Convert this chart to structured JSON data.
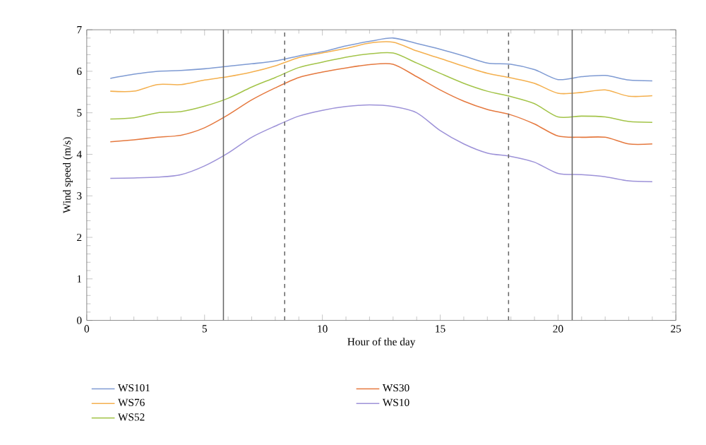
{
  "chart_data": {
    "type": "line",
    "xlabel": "Hour of the day",
    "ylabel": "Wind speed (m/s)",
    "x": [
      1,
      2,
      3,
      4,
      5,
      6,
      7,
      8,
      9,
      10,
      11,
      12,
      13,
      14,
      15,
      16,
      17,
      18,
      19,
      20,
      21,
      22,
      23,
      24
    ],
    "series": [
      {
        "name": "WS101",
        "color": "#7f9bd3",
        "values": [
          5.83,
          5.93,
          6.0,
          6.02,
          6.06,
          6.12,
          6.18,
          6.25,
          6.37,
          6.47,
          6.61,
          6.72,
          6.8,
          6.67,
          6.53,
          6.37,
          6.2,
          6.17,
          6.04,
          5.8,
          5.87,
          5.9,
          5.79,
          5.77
        ]
      },
      {
        "name": "WS76",
        "color": "#f4b04f",
        "values": [
          5.52,
          5.52,
          5.68,
          5.68,
          5.79,
          5.87,
          5.98,
          6.13,
          6.33,
          6.44,
          6.55,
          6.68,
          6.7,
          6.49,
          6.31,
          6.12,
          5.95,
          5.84,
          5.71,
          5.47,
          5.49,
          5.55,
          5.4,
          5.41
        ]
      },
      {
        "name": "WS52",
        "color": "#a3c449",
        "values": [
          4.85,
          4.88,
          5.0,
          5.03,
          5.16,
          5.35,
          5.62,
          5.85,
          6.09,
          6.22,
          6.34,
          6.42,
          6.44,
          6.2,
          5.95,
          5.71,
          5.52,
          5.39,
          5.22,
          4.9,
          4.92,
          4.9,
          4.79,
          4.77
        ]
      },
      {
        "name": "WS30",
        "color": "#e5793f",
        "values": [
          4.3,
          4.35,
          4.41,
          4.46,
          4.64,
          4.95,
          5.31,
          5.6,
          5.85,
          5.98,
          6.08,
          6.16,
          6.17,
          5.87,
          5.55,
          5.28,
          5.08,
          4.95,
          4.73,
          4.44,
          4.41,
          4.41,
          4.25,
          4.25
        ]
      },
      {
        "name": "WS10",
        "color": "#9d92d8",
        "values": [
          3.42,
          3.43,
          3.45,
          3.51,
          3.72,
          4.03,
          4.41,
          4.68,
          4.92,
          5.06,
          5.15,
          5.19,
          5.15,
          5.0,
          4.57,
          4.25,
          4.03,
          3.95,
          3.81,
          3.54,
          3.51,
          3.46,
          3.36,
          3.34
        ]
      }
    ],
    "xlim": [
      0,
      25
    ],
    "xticks": [
      0,
      5,
      10,
      15,
      20,
      25
    ],
    "ylim": [
      0,
      7
    ],
    "yticks": [
      0,
      1,
      2,
      3,
      4,
      5,
      6,
      7
    ],
    "ref_lines": [
      {
        "axis": "x",
        "value": 5.8,
        "color": "#666666",
        "line_style": "solid"
      },
      {
        "axis": "x",
        "value": 8.4,
        "color": "#666666",
        "line_style": "dashed"
      },
      {
        "axis": "x",
        "value": 17.9,
        "color": "#666666",
        "line_style": "dashed"
      },
      {
        "axis": "x",
        "value": 20.6,
        "color": "#666666",
        "line_style": "solid"
      }
    ],
    "grid": false,
    "legend": "bottom"
  }
}
